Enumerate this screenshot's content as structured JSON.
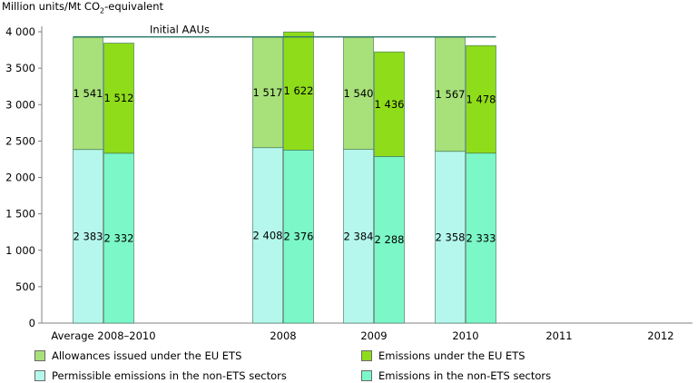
{
  "chart_data": {
    "type": "bar",
    "ylabel_prefix": "Million units/Mt CO",
    "ylabel_sub": "2",
    "ylabel_suffix": "-equivalent",
    "ylim": [
      0,
      4000
    ],
    "yticks": [
      0,
      500,
      1000,
      1500,
      2000,
      2500,
      3000,
      3500,
      4000
    ],
    "ytick_labels": [
      "0",
      "500",
      "1 000",
      "1 500",
      "2 000",
      "2 500",
      "3 000",
      "3 500",
      "4 000"
    ],
    "categories": [
      "Average 2008–2010",
      "2008",
      "2009",
      "2010",
      "2011",
      "2012"
    ],
    "initial_aaus": {
      "label": "Initial AAUs",
      "value": 3930
    },
    "groups": [
      {
        "category": "Average 2008–2010",
        "left": {
          "bottom": 2383,
          "bottom_label": "2 383",
          "top": 1541,
          "top_label": "1 541"
        },
        "right": {
          "bottom": 2332,
          "bottom_label": "2 332",
          "top": 1512,
          "top_label": "1 512"
        }
      },
      {
        "category": "2008",
        "left": {
          "bottom": 2408,
          "bottom_label": "2 408",
          "top": 1517,
          "top_label": "1 517"
        },
        "right": {
          "bottom": 2376,
          "bottom_label": "2 376",
          "top": 1622,
          "top_label": "1 622"
        }
      },
      {
        "category": "2009",
        "left": {
          "bottom": 2384,
          "bottom_label": "2 384",
          "top": 1540,
          "top_label": "1 540"
        },
        "right": {
          "bottom": 2288,
          "bottom_label": "2 288",
          "top": 1436,
          "top_label": "1 436"
        }
      },
      {
        "category": "2010",
        "left": {
          "bottom": 2358,
          "bottom_label": "2 358",
          "top": 1567,
          "top_label": "1 567"
        },
        "right": {
          "bottom": 2333,
          "bottom_label": "2 333",
          "top": 1478,
          "top_label": "1 478"
        }
      }
    ],
    "series": [
      {
        "name": "Allowances issued under the EU ETS",
        "color": "#a8e07a"
      },
      {
        "name": "Emissions under the EU ETS",
        "color": "#8fdc1a"
      },
      {
        "name": "Permissible emissions in the non-ETS sectors",
        "color": "#b5f7ec"
      },
      {
        "name": "Emissions in the non-ETS sectors",
        "color": "#7cf7c8"
      }
    ],
    "bar_outline_color": "#3a6f5a",
    "aau_line_color": "#2a7a6a"
  }
}
